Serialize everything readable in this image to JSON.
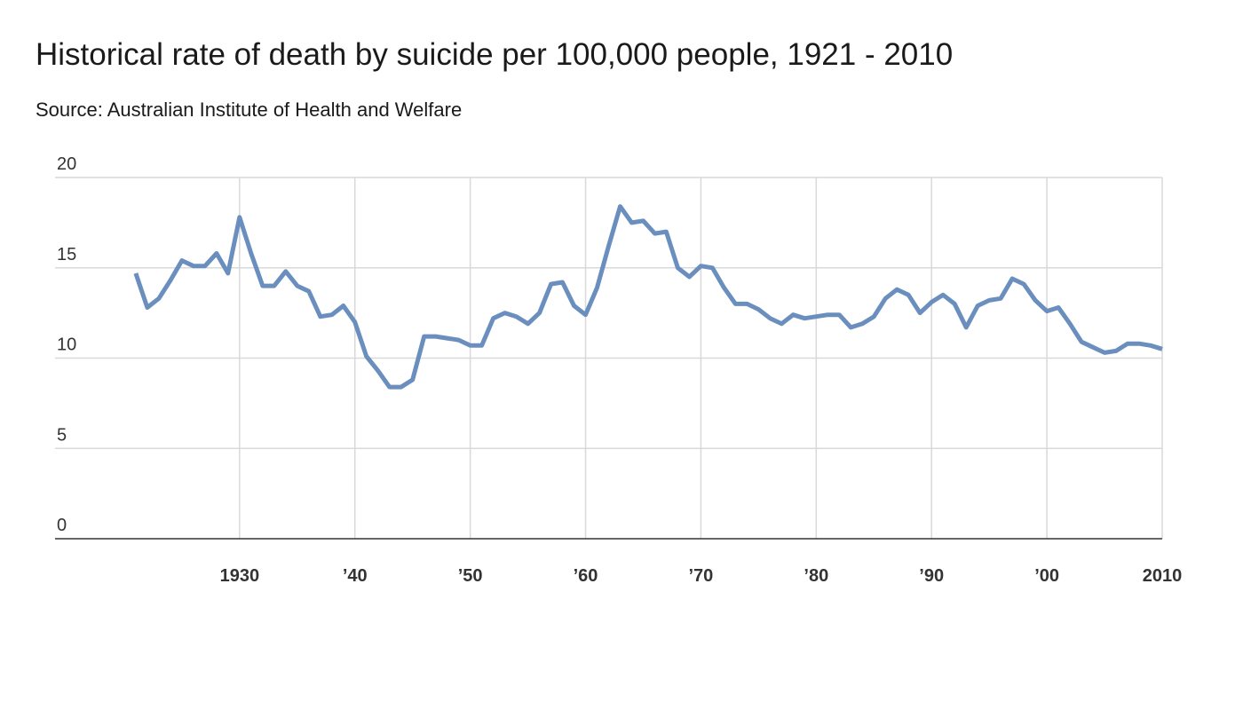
{
  "chart_data": {
    "type": "line",
    "title": "Historical rate of death by suicide per 100,000 people, 1921 - 2010",
    "subtitle": "Source: Australian Institute of Health and Welfare",
    "xlabel": "",
    "ylabel": "",
    "ylim": [
      0,
      20
    ],
    "xlim": [
      1914,
      2010
    ],
    "y_ticks": [
      0,
      5,
      10,
      15,
      20
    ],
    "x_ticks": [
      {
        "year": 1930,
        "label": "1930"
      },
      {
        "year": 1940,
        "label": "’40"
      },
      {
        "year": 1950,
        "label": "’50"
      },
      {
        "year": 1960,
        "label": "’60"
      },
      {
        "year": 1970,
        "label": "’70"
      },
      {
        "year": 1980,
        "label": "’80"
      },
      {
        "year": 1990,
        "label": "’90"
      },
      {
        "year": 2000,
        "label": "’00"
      },
      {
        "year": 2010,
        "label": "2010"
      }
    ],
    "grid": true,
    "legend": "none",
    "line_color": "#6a8fbe",
    "series": [
      {
        "name": "Suicide rate per 100,000",
        "x": [
          1921,
          1922,
          1923,
          1924,
          1925,
          1926,
          1927,
          1928,
          1929,
          1930,
          1931,
          1932,
          1933,
          1934,
          1935,
          1936,
          1937,
          1938,
          1939,
          1940,
          1941,
          1942,
          1943,
          1944,
          1945,
          1946,
          1947,
          1948,
          1949,
          1950,
          1951,
          1952,
          1953,
          1954,
          1955,
          1956,
          1957,
          1958,
          1959,
          1960,
          1961,
          1962,
          1963,
          1964,
          1965,
          1966,
          1967,
          1968,
          1969,
          1970,
          1971,
          1972,
          1973,
          1974,
          1975,
          1976,
          1977,
          1978,
          1979,
          1980,
          1981,
          1982,
          1983,
          1984,
          1985,
          1986,
          1987,
          1988,
          1989,
          1990,
          1991,
          1992,
          1993,
          1994,
          1995,
          1996,
          1997,
          1998,
          1999,
          2000,
          2001,
          2002,
          2003,
          2004,
          2005,
          2006,
          2007,
          2008,
          2009,
          2010
        ],
        "values": [
          14.7,
          12.8,
          13.3,
          14.3,
          15.4,
          15.1,
          15.1,
          15.8,
          14.7,
          17.8,
          15.8,
          14.0,
          14.0,
          14.8,
          14.0,
          13.7,
          12.3,
          12.4,
          12.9,
          12.0,
          10.1,
          9.3,
          8.4,
          8.4,
          8.8,
          11.2,
          11.2,
          11.1,
          11.0,
          10.7,
          10.7,
          12.2,
          12.5,
          12.3,
          11.9,
          12.5,
          14.1,
          14.2,
          12.9,
          12.4,
          13.9,
          16.2,
          18.4,
          17.5,
          17.6,
          16.9,
          17.0,
          15.0,
          14.5,
          15.1,
          15.0,
          13.9,
          13.0,
          13.0,
          12.7,
          12.2,
          11.9,
          12.4,
          12.2,
          12.3,
          12.4,
          12.4,
          11.7,
          11.9,
          12.3,
          13.3,
          13.8,
          13.5,
          12.5,
          13.1,
          13.5,
          13.0,
          11.7,
          12.9,
          13.2,
          13.3,
          14.4,
          14.1,
          13.2,
          12.6,
          12.8,
          11.9,
          10.9,
          10.6,
          10.3,
          10.4,
          10.8,
          10.8,
          10.7,
          10.5
        ]
      }
    ]
  }
}
